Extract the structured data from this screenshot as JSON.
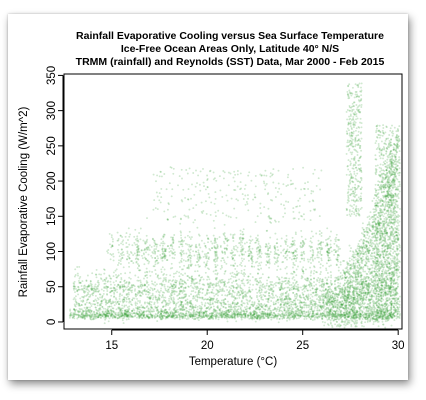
{
  "chart_data": {
    "type": "scatter",
    "title_lines": [
      "Rainfall Evaporative Cooling versus Sea Surface Temperature",
      "Ice-Free Ocean Areas Only, Latitude 40° N/S",
      "TRMM (rainfall) and Reynolds (SST) Data, Mar 2000 - Feb 2015"
    ],
    "xlabel": "Temperature (°C)",
    "ylabel": "Rainfall Evaporative Cooling (W/m^2)",
    "xlim": [
      12.5,
      30.2
    ],
    "ylim": [
      -10,
      352
    ],
    "x_ticks": [
      15,
      20,
      25,
      30
    ],
    "y_ticks": [
      0,
      50,
      100,
      150,
      200,
      250,
      300,
      350
    ],
    "x_tick_labels": [
      "15",
      "20",
      "25",
      "30"
    ],
    "y_tick_labels": [
      "0",
      "50",
      "100",
      "150",
      "200",
      "250",
      "300",
      "350"
    ],
    "point_color": "#2e9a2e",
    "grid": false,
    "legend": "none",
    "distribution": [
      {
        "region": "low band",
        "x_range": [
          13,
          30
        ],
        "y_range": [
          0,
          20
        ],
        "density": "very high"
      },
      {
        "region": "mid band",
        "x_range": [
          13,
          26
        ],
        "y_range": [
          30,
          70
        ],
        "density": "high"
      },
      {
        "region": "upper band",
        "x_range": [
          15,
          27
        ],
        "y_range": [
          80,
          130
        ],
        "density": "moderate"
      },
      {
        "region": "scattered high",
        "x_range": [
          17,
          26
        ],
        "y_range": [
          140,
          220
        ],
        "density": "low"
      },
      {
        "region": "steep rise",
        "x_range": [
          26,
          30
        ],
        "y_range": [
          0,
          340
        ],
        "density": "very high"
      }
    ]
  }
}
